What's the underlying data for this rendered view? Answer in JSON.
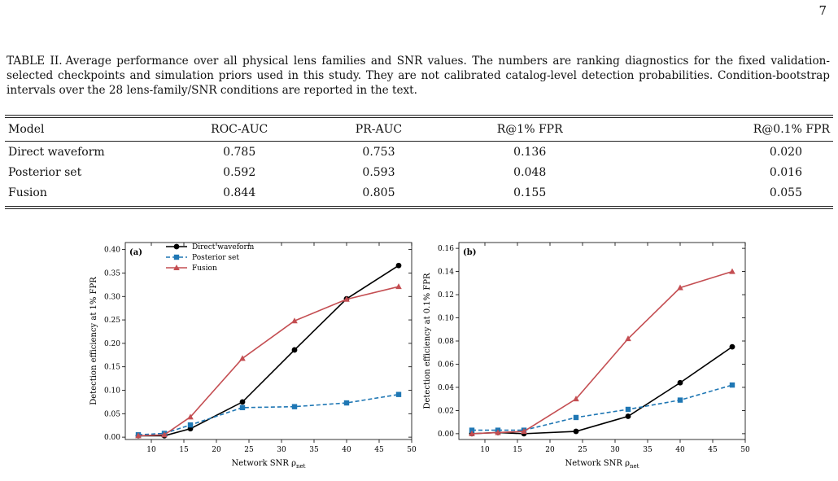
{
  "page_number": "7",
  "caption": {
    "label": "TABLE II.",
    "text": "Average performance over all physical lens families and SNR values. The numbers are ranking diagnostics for the fixed validation-selected checkpoints and simulation priors used in this study. They are not calibrated catalog-level detection probabilities. Condition-bootstrap intervals over the 28 lens-family/SNR conditions are reported in the text."
  },
  "table": {
    "headers": [
      "Model",
      "ROC-AUC",
      "PR-AUC",
      "R@1% FPR",
      "R@0.1% FPR"
    ],
    "rows": [
      [
        "Direct waveform",
        "0.785",
        "0.753",
        "0.136",
        "0.020"
      ],
      [
        "Posterior set",
        "0.592",
        "0.593",
        "0.048",
        "0.016"
      ],
      [
        "Fusion",
        "0.844",
        "0.805",
        "0.155",
        "0.055"
      ]
    ]
  },
  "chart_data": [
    {
      "type": "line",
      "panel_label": "(a)",
      "xlabel": "Network SNR ρ",
      "xlabel_sub": "net",
      "ylabel": "Detection efficiency at 1% FPR",
      "xlim": [
        6,
        50
      ],
      "ylim": [
        -0.005,
        0.415
      ],
      "xticks": [
        10,
        15,
        20,
        25,
        30,
        35,
        40,
        45,
        50
      ],
      "yticks": [
        0.0,
        0.05,
        0.1,
        0.15,
        0.2,
        0.25,
        0.3,
        0.35,
        0.4
      ],
      "ytick_labels": [
        "0.00",
        "0.05",
        "0.10",
        "0.15",
        "0.20",
        "0.25",
        "0.30",
        "0.35",
        "0.40"
      ],
      "legend": "top-center",
      "x": [
        8,
        12,
        16,
        24,
        32,
        40,
        48
      ],
      "series": [
        {
          "name": "Direct waveform",
          "color": "#000000",
          "marker": "circle",
          "dash": "solid",
          "values": [
            0.003,
            0.003,
            0.018,
            0.075,
            0.186,
            0.295,
            0.366
          ]
        },
        {
          "name": "Posterior set",
          "color": "#1f77b4",
          "marker": "square",
          "dash": "dashed",
          "values": [
            0.005,
            0.008,
            0.026,
            0.063,
            0.065,
            0.073,
            0.091
          ]
        },
        {
          "name": "Fusion",
          "color": "#c44e52",
          "marker": "triangle",
          "dash": "solid",
          "values": [
            0.003,
            0.005,
            0.043,
            0.168,
            0.248,
            0.294,
            0.321
          ]
        }
      ]
    },
    {
      "type": "line",
      "panel_label": "(b)",
      "xlabel": "Network SNR ρ",
      "xlabel_sub": "net",
      "ylabel": "Detection efficiency at 0.1% FPR",
      "xlim": [
        6,
        50
      ],
      "ylim": [
        -0.005,
        0.165
      ],
      "xticks": [
        10,
        15,
        20,
        25,
        30,
        35,
        40,
        45,
        50
      ],
      "yticks": [
        0.0,
        0.02,
        0.04,
        0.06,
        0.08,
        0.1,
        0.12,
        0.14,
        0.16
      ],
      "ytick_labels": [
        "0.00",
        "0.02",
        "0.04",
        "0.06",
        "0.08",
        "0.10",
        "0.12",
        "0.14",
        "0.16"
      ],
      "x": [
        8,
        12,
        16,
        24,
        32,
        40,
        48
      ],
      "series": [
        {
          "name": "Direct waveform",
          "color": "#000000",
          "marker": "circle",
          "dash": "solid",
          "values": [
            0.0,
            0.001,
            0.0,
            0.002,
            0.015,
            0.044,
            0.075
          ]
        },
        {
          "name": "Posterior set",
          "color": "#1f77b4",
          "marker": "square",
          "dash": "dashed",
          "values": [
            0.003,
            0.003,
            0.003,
            0.014,
            0.021,
            0.029,
            0.042
          ]
        },
        {
          "name": "Fusion",
          "color": "#c44e52",
          "marker": "triangle",
          "dash": "solid",
          "values": [
            0.0,
            0.001,
            0.002,
            0.03,
            0.082,
            0.126,
            0.14
          ]
        }
      ]
    }
  ]
}
